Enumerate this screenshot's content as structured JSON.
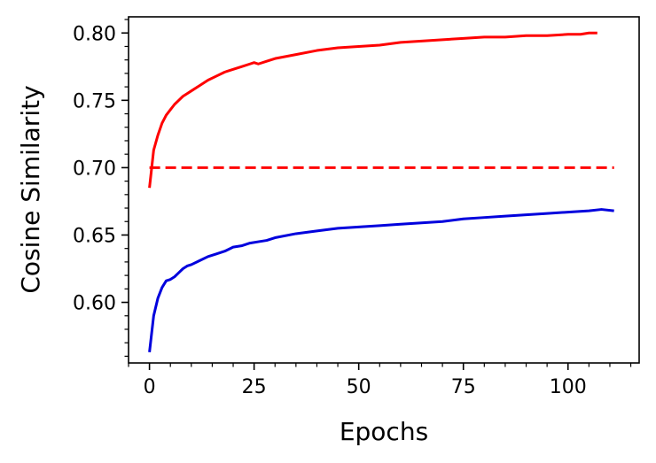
{
  "chart_data": {
    "type": "line",
    "xlabel": "Epochs",
    "ylabel": "Cosine Similarity",
    "xlim": [
      -5,
      117
    ],
    "ylim": [
      0.555,
      0.812
    ],
    "x_ticks": [
      0,
      25,
      50,
      75,
      100
    ],
    "y_ticks": [
      0.6,
      0.65,
      0.7,
      0.75,
      0.8
    ],
    "grid": false,
    "series": [
      {
        "color": "#ff0000",
        "style": "solid",
        "x": [
          0,
          1,
          2,
          3,
          4,
          5,
          6,
          7,
          8,
          9,
          10,
          12,
          14,
          16,
          18,
          20,
          22,
          24,
          25,
          26,
          28,
          30,
          35,
          40,
          45,
          50,
          55,
          60,
          65,
          70,
          75,
          80,
          85,
          90,
          95,
          100,
          103,
          105,
          107
        ],
        "y": [
          0.685,
          0.713,
          0.724,
          0.733,
          0.739,
          0.743,
          0.747,
          0.75,
          0.753,
          0.755,
          0.757,
          0.761,
          0.765,
          0.768,
          0.771,
          0.773,
          0.775,
          0.777,
          0.778,
          0.777,
          0.779,
          0.781,
          0.784,
          0.787,
          0.789,
          0.79,
          0.791,
          0.793,
          0.794,
          0.795,
          0.796,
          0.797,
          0.797,
          0.798,
          0.798,
          0.799,
          0.799,
          0.8,
          0.8
        ]
      },
      {
        "color": "#ff0000",
        "style": "dashed",
        "x": [
          0,
          111
        ],
        "y": [
          0.7,
          0.7
        ]
      },
      {
        "color": "#0000dd",
        "style": "solid",
        "x": [
          0,
          1,
          2,
          3,
          4,
          5,
          6,
          7,
          8,
          9,
          10,
          12,
          14,
          16,
          18,
          20,
          22,
          24,
          26,
          28,
          30,
          35,
          40,
          45,
          50,
          55,
          60,
          65,
          70,
          75,
          80,
          85,
          90,
          95,
          100,
          105,
          108,
          111
        ],
        "y": [
          0.563,
          0.59,
          0.603,
          0.611,
          0.616,
          0.617,
          0.619,
          0.622,
          0.625,
          0.627,
          0.628,
          0.631,
          0.634,
          0.636,
          0.638,
          0.641,
          0.642,
          0.644,
          0.645,
          0.646,
          0.648,
          0.651,
          0.653,
          0.655,
          0.656,
          0.657,
          0.658,
          0.659,
          0.66,
          0.662,
          0.663,
          0.664,
          0.665,
          0.666,
          0.667,
          0.668,
          0.669,
          0.668
        ]
      }
    ]
  }
}
